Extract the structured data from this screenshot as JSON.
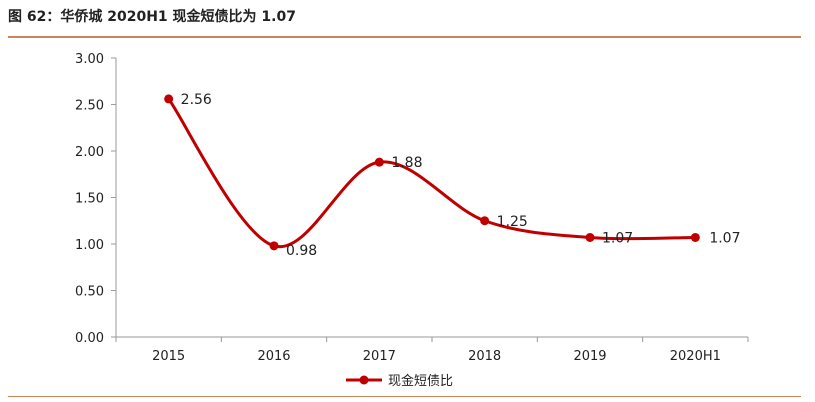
{
  "title": "图 62：华侨城 2020H1 现金短债比为 1.07",
  "chart_data": {
    "type": "line",
    "title": "",
    "xlabel": "",
    "ylabel": "",
    "categories": [
      "2015",
      "2016",
      "2017",
      "2018",
      "2019",
      "2020H1"
    ],
    "series": [
      {
        "name": "现金短债比",
        "values": [
          2.56,
          0.98,
          1.88,
          1.25,
          1.07,
          1.07
        ],
        "color": "#c00000"
      }
    ],
    "data_labels": [
      "2.56",
      "0.98",
      "1.88",
      "1.25",
      "1.07",
      "1.07"
    ],
    "yticks": [
      "0.00",
      "0.50",
      "1.00",
      "1.50",
      "2.00",
      "2.50",
      "3.00"
    ],
    "ylim": [
      0,
      3
    ],
    "grid": false,
    "smooth": true,
    "legend": "bottom-center"
  }
}
